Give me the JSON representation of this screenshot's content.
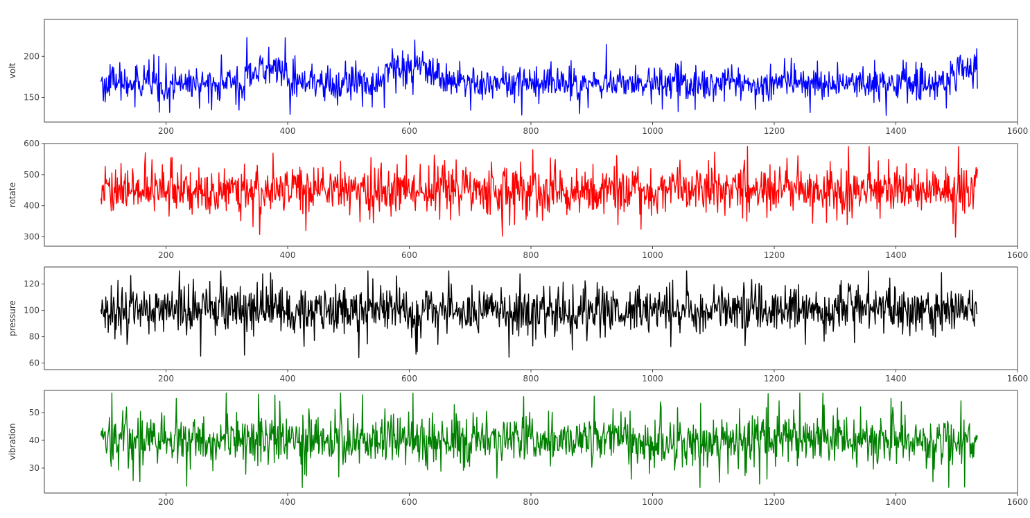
{
  "chart_data": [
    {
      "type": "line",
      "ylabel": "volt",
      "color": "#0000ff",
      "x_range": [
        93,
        1534
      ],
      "xlim": [
        0,
        1600
      ],
      "ylim": [
        120,
        245
      ],
      "xticks": [
        200,
        400,
        600,
        800,
        1000,
        1200,
        1400,
        1600
      ],
      "yticks": [
        150,
        200
      ],
      "series": [
        {
          "mean": 170,
          "spread": 10,
          "min": 125,
          "max": 240,
          "segments": [
            {
              "from": 93,
              "to": 330,
              "mean": 167
            },
            {
              "from": 330,
              "to": 400,
              "mean": 183
            },
            {
              "from": 400,
              "to": 560,
              "mean": 167
            },
            {
              "from": 560,
              "to": 650,
              "mean": 185
            },
            {
              "from": 650,
              "to": 1490,
              "mean": 167
            },
            {
              "from": 1490,
              "to": 1534,
              "mean": 185
            }
          ]
        }
      ]
    },
    {
      "type": "line",
      "ylabel": "rotate",
      "color": "#ff0000",
      "x_range": [
        93,
        1534
      ],
      "xlim": [
        0,
        1600
      ],
      "ylim": [
        270,
        600
      ],
      "xticks": [
        200,
        400,
        600,
        800,
        1000,
        1200,
        1400,
        1600
      ],
      "yticks": [
        300,
        400,
        500,
        600
      ],
      "series": [
        {
          "mean": 450,
          "spread": 38,
          "min": 285,
          "max": 590,
          "segments": []
        }
      ]
    },
    {
      "type": "line",
      "ylabel": "pressure",
      "color": "#000000",
      "x_range": [
        93,
        1534
      ],
      "xlim": [
        0,
        1600
      ],
      "ylim": [
        55,
        133
      ],
      "xticks": [
        200,
        400,
        600,
        800,
        1000,
        1200,
        1400,
        1600
      ],
      "yticks": [
        60,
        80,
        100,
        120
      ],
      "series": [
        {
          "mean": 100,
          "spread": 9,
          "min": 58,
          "max": 130,
          "segments": []
        }
      ]
    },
    {
      "type": "line",
      "ylabel": "vibration",
      "color": "#008000",
      "x_range": [
        93,
        1534
      ],
      "xlim": [
        0,
        1600
      ],
      "ylim": [
        21,
        58
      ],
      "xticks": [
        200,
        400,
        600,
        800,
        1000,
        1200,
        1400,
        1600
      ],
      "yticks": [
        30,
        40,
        50
      ],
      "series": [
        {
          "mean": 40,
          "spread": 4.5,
          "min": 23,
          "max": 57,
          "segments": []
        }
      ]
    }
  ]
}
